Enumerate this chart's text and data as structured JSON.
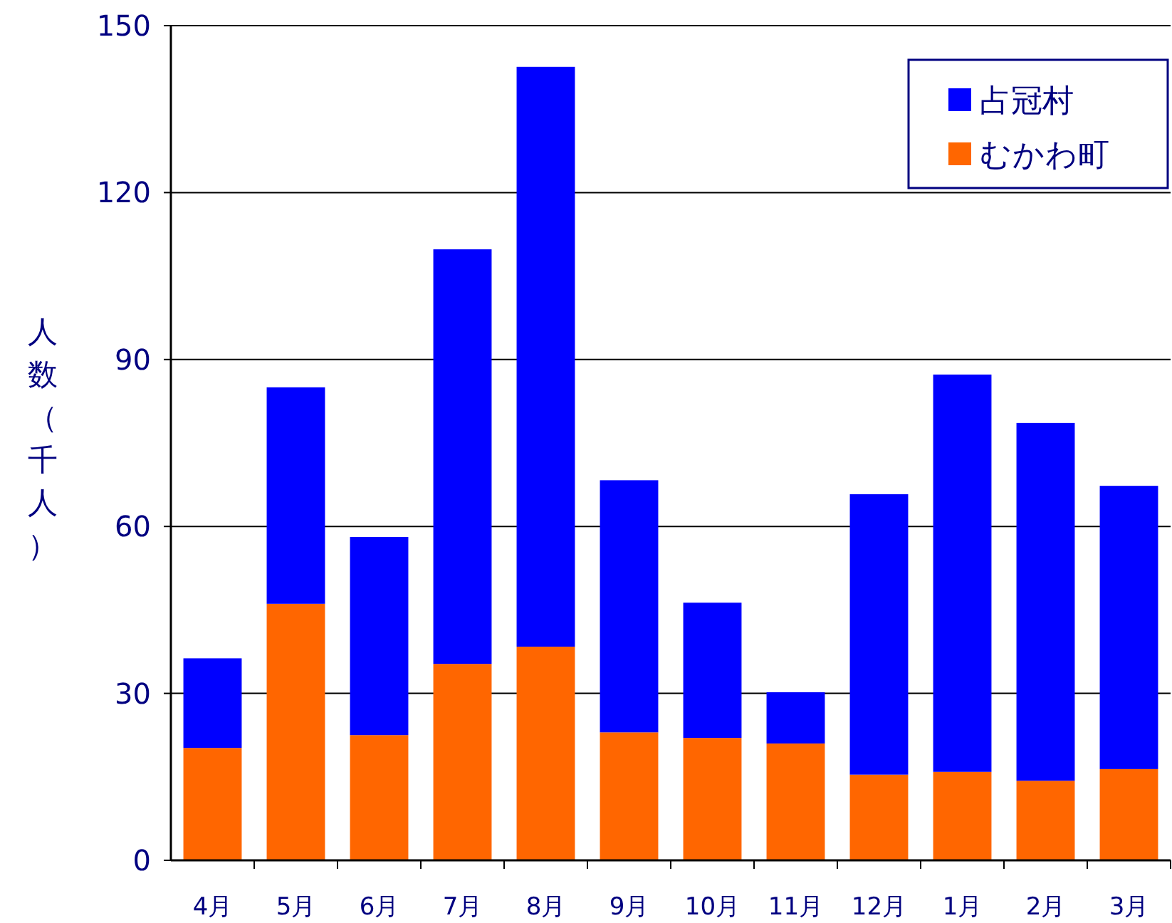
{
  "chart_data": {
    "type": "bar",
    "stacked": true,
    "ylabel": "人数（千人）",
    "categories": [
      "4月",
      "5月",
      "6月",
      "7月",
      "8月",
      "9月",
      "10月",
      "11月",
      "12月",
      "1月",
      "2月",
      "3月"
    ],
    "series": [
      {
        "name": "むかわ町",
        "color": "#ff6600",
        "values": [
          20.2,
          46.1,
          22.5,
          35.3,
          38.4,
          23.0,
          22.0,
          21.0,
          15.4,
          15.9,
          14.3,
          16.4
        ]
      },
      {
        "name": "占冠村",
        "color": "#0000ff",
        "values": [
          16.1,
          38.9,
          35.6,
          74.5,
          104.2,
          45.3,
          24.3,
          9.2,
          50.4,
          71.4,
          64.3,
          50.9
        ]
      }
    ],
    "ylim": [
      0,
      150
    ],
    "yticks": [
      0,
      30,
      60,
      90,
      120,
      150
    ],
    "grid": "y",
    "legend": "top right"
  }
}
